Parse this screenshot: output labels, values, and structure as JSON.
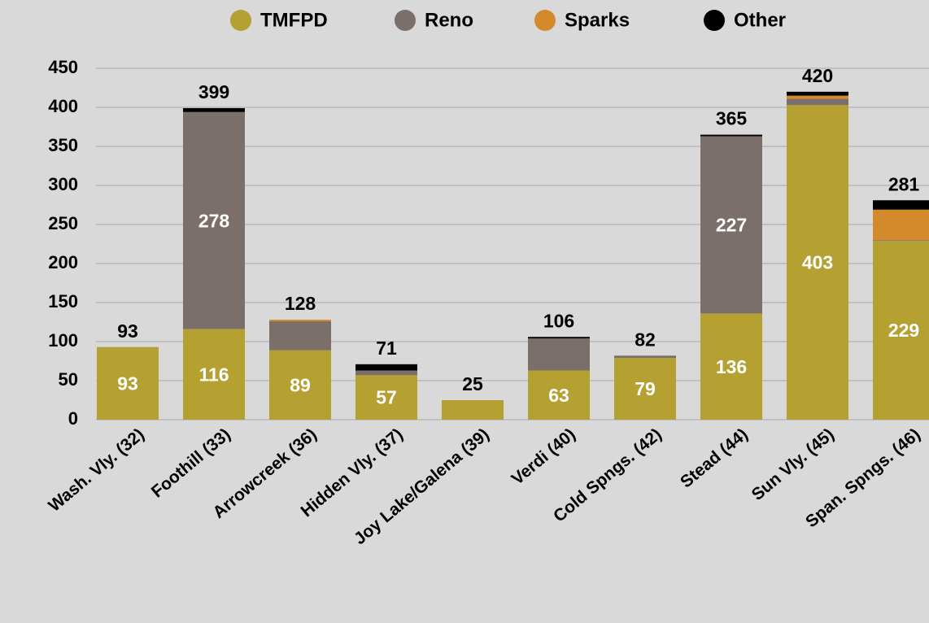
{
  "chart_data": {
    "type": "stacked_bar",
    "categories": [
      "Wash. Vly. (32)",
      "Foothill (33)",
      "Arrowcreek (36)",
      "Hidden Vly. (37)",
      "Joy Lake/Galena (39)",
      "Verdi (40)",
      "Cold Spngs. (42)",
      "Stead (44)",
      "Sun Vly. (45)",
      "Span. Spngs. (46)"
    ],
    "series": [
      {
        "name": "TMFPD",
        "color": "#b5a032",
        "values": [
          93,
          116,
          89,
          57,
          25,
          63,
          79,
          136,
          403,
          229
        ]
      },
      {
        "name": "Reno",
        "color": "#7b6f6b",
        "values": [
          0,
          278,
          37,
          6,
          0,
          41,
          3,
          227,
          8,
          1
        ]
      },
      {
        "name": "Sparks",
        "color": "#d4892a",
        "values": [
          0,
          0,
          2,
          0,
          0,
          0,
          0,
          0,
          4,
          39
        ]
      },
      {
        "name": "Other",
        "color": "#000000",
        "values": [
          0,
          5,
          0,
          8,
          0,
          2,
          0,
          2,
          5,
          12
        ]
      }
    ],
    "totals": [
      93,
      399,
      128,
      71,
      25,
      106,
      82,
      365,
      420,
      281
    ],
    "ylim": [
      0,
      450
    ],
    "yticks": [
      0,
      50,
      100,
      150,
      200,
      250,
      300,
      350,
      400,
      450
    ],
    "grid": true,
    "legend": "top"
  }
}
